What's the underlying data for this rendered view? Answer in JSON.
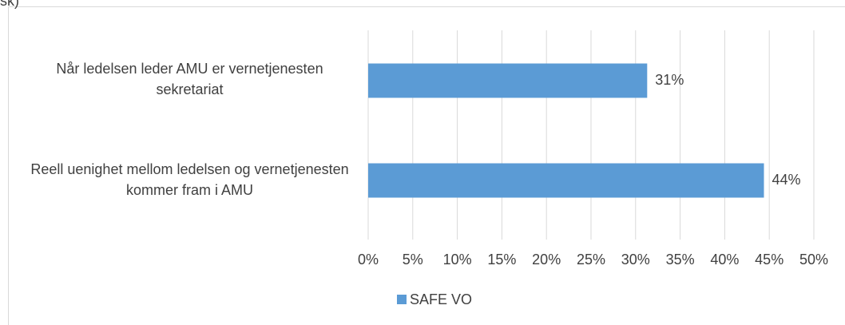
{
  "chart_data": {
    "type": "bar",
    "orientation": "horizontal",
    "title": "isk)",
    "categories": [
      "Når ledelsen leder AMU er vernetjenesten sekretariat",
      "Reell uenighet mellom ledelsen og vernetjenesten kommer fram i AMU"
    ],
    "series": [
      {
        "name": "SAFE VO",
        "color": "#5b9bd5",
        "values": [
          31.3,
          44.4
        ],
        "value_labels": [
          "31%",
          "44%"
        ]
      }
    ],
    "xlim": [
      0,
      50
    ],
    "xticks": [
      {
        "value": 0,
        "label": "0%"
      },
      {
        "value": 5,
        "label": "5%"
      },
      {
        "value": 10,
        "label": "10%"
      },
      {
        "value": 15,
        "label": "15%"
      },
      {
        "value": 20,
        "label": "20%"
      },
      {
        "value": 25,
        "label": "25%"
      },
      {
        "value": 30,
        "label": "30%"
      },
      {
        "value": 35,
        "label": "35%"
      },
      {
        "value": 40,
        "label": "40%"
      },
      {
        "value": 45,
        "label": "45%"
      },
      {
        "value": 50,
        "label": "50%"
      }
    ],
    "grid": true,
    "legend": "bottom"
  }
}
